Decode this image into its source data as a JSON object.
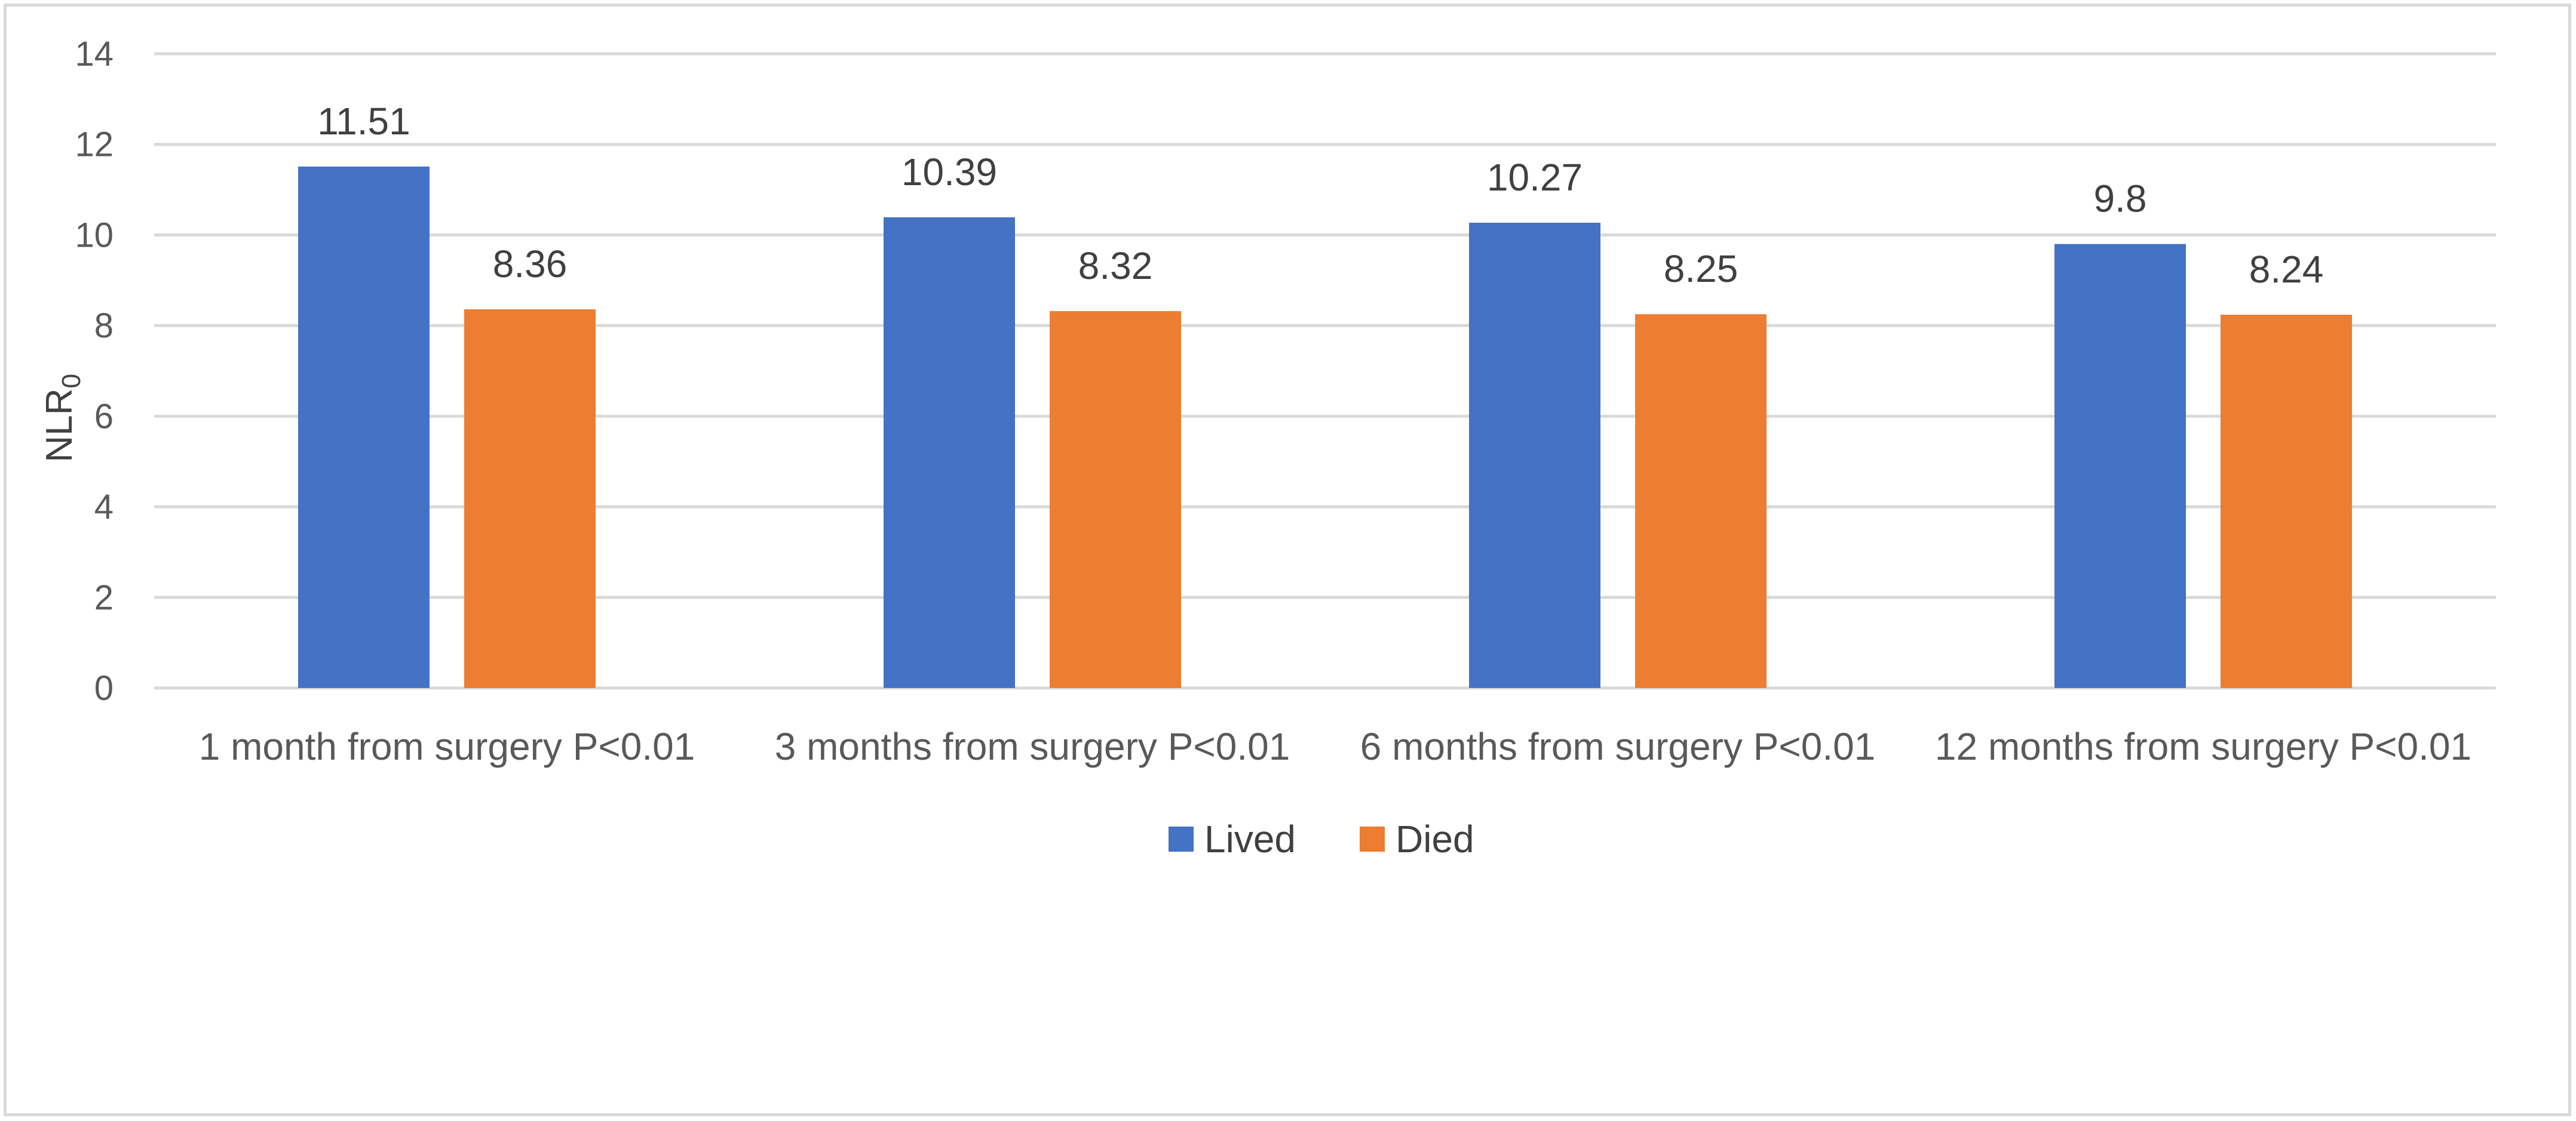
{
  "chart_data": {
    "type": "bar",
    "title": "",
    "xlabel": "",
    "ylabel": "NLR",
    "ylabel_subscript": "0",
    "ylim": [
      0,
      14
    ],
    "yticks": [
      0,
      2,
      4,
      6,
      8,
      10,
      12,
      14
    ],
    "grid": true,
    "legend_position": "bottom",
    "categories": [
      "1 month from surgery P<0.01",
      "3 months from surgery P<0.01",
      "6 months from surgery P<0.01",
      "12 months from surgery P<0.01"
    ],
    "series": [
      {
        "name": "Lived",
        "color": "#4472c4",
        "values": [
          11.51,
          10.39,
          10.27,
          9.8
        ]
      },
      {
        "name": "Died",
        "color": "#ed7d31",
        "values": [
          8.36,
          8.32,
          8.25,
          8.24
        ]
      }
    ]
  }
}
